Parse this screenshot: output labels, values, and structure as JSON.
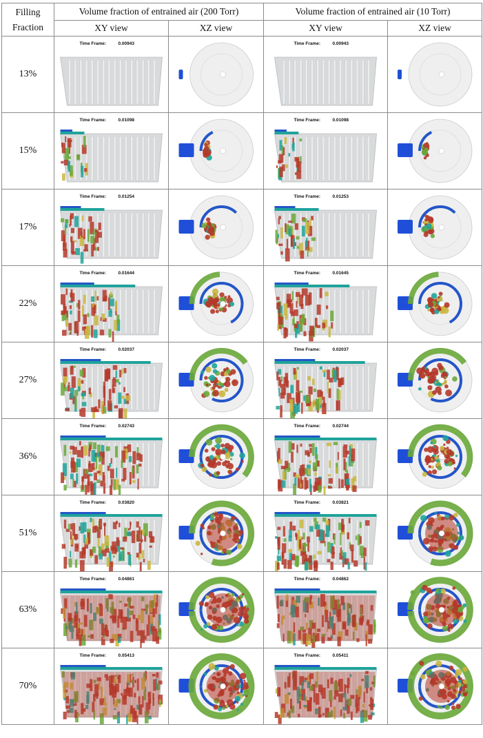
{
  "header": {
    "col_filling": "Filling",
    "col_fraction": "Fraction",
    "group_200": "Volume fraction of entrained air (200 Torr)",
    "group_10": "Volume fraction of entrained air (10 Torr)",
    "xy_view": "XY view",
    "xz_view": "XZ view"
  },
  "time_label": "Time Frame:",
  "rows": [
    {
      "fraction": "13%",
      "stage": 0.0,
      "t200": "0.00943",
      "t10": "0.00943"
    },
    {
      "fraction": "15%",
      "stage": 0.12,
      "t200": "0.01098",
      "t10": "0.01098"
    },
    {
      "fraction": "17%",
      "stage": 0.25,
      "t200": "0.01254",
      "t10": "0.01253"
    },
    {
      "fraction": "22%",
      "stage": 0.45,
      "t200": "0.01644",
      "t10": "0.01645"
    },
    {
      "fraction": "27%",
      "stage": 0.55,
      "t200": "0.02037",
      "t10": "0.02037"
    },
    {
      "fraction": "36%",
      "stage": 0.68,
      "t200": "0.02743",
      "t10": "0.02744"
    },
    {
      "fraction": "51%",
      "stage": 0.8,
      "t200": "0.03820",
      "t10": "0.03821"
    },
    {
      "fraction": "63%",
      "stage": 0.92,
      "t200": "0.04861",
      "t10": "0.04862"
    },
    {
      "fraction": "70%",
      "stage": 1.0,
      "t200": "0.05413",
      "t10": "0.05411"
    }
  ],
  "colors": {
    "shell": "#d9dadc",
    "shell_edge": "#b8babd",
    "gate": "#1f4fd8",
    "red": "#b5392a",
    "green": "#6aa83a",
    "teal": "#1fa39a",
    "yellow": "#c9b640",
    "ring_blue": "#2456c8"
  }
}
